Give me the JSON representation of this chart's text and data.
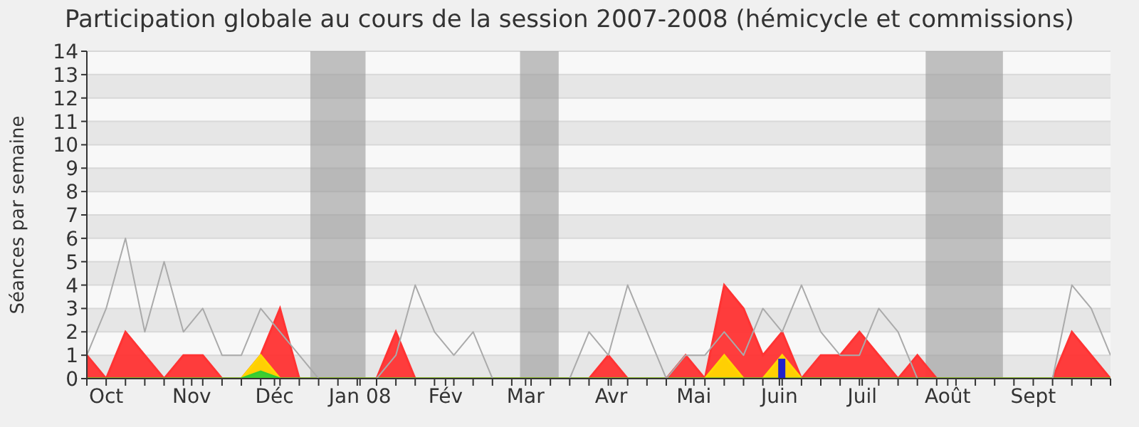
{
  "chart_data": {
    "type": "area",
    "title": "Participation globale au cours de la session 2007-2008 (hémicycle et commissions)",
    "ylabel": "Séances par semaine",
    "x": [
      "2007-09-24",
      "2007-10-01",
      "2007-10-08",
      "2007-10-15",
      "2007-10-22",
      "2007-10-29",
      "2007-11-05",
      "2007-11-12",
      "2007-11-19",
      "2007-11-26",
      "2007-12-03",
      "2007-12-10",
      "2007-12-17",
      "2007-12-24",
      "2007-12-31",
      "2008-01-07",
      "2008-01-14",
      "2008-01-21",
      "2008-01-28",
      "2008-02-04",
      "2008-02-11",
      "2008-02-18",
      "2008-02-25",
      "2008-03-03",
      "2008-03-10",
      "2008-03-17",
      "2008-03-24",
      "2008-03-31",
      "2008-04-07",
      "2008-04-14",
      "2008-04-21",
      "2008-04-28",
      "2008-05-05",
      "2008-05-12",
      "2008-05-19",
      "2008-05-26",
      "2008-06-02",
      "2008-06-09",
      "2008-06-16",
      "2008-06-23",
      "2008-06-30",
      "2008-07-07",
      "2008-07-14",
      "2008-07-21",
      "2008-07-28",
      "2008-08-04",
      "2008-08-11",
      "2008-08-18",
      "2008-08-25",
      "2008-09-01",
      "2008-09-08",
      "2008-09-15",
      "2008-09-22",
      "2008-09-29"
    ],
    "series": [
      {
        "color": "#ff3333",
        "values": [
          1,
          0,
          2,
          1,
          0,
          1,
          1,
          0,
          0,
          1,
          3,
          0,
          0,
          0,
          0,
          0,
          2,
          0,
          0,
          0,
          0,
          0,
          0,
          0,
          0,
          0,
          0,
          1,
          0,
          0,
          0,
          1,
          0,
          4,
          3,
          1,
          2,
          0,
          1,
          1,
          2,
          1,
          0,
          1,
          0,
          0,
          0,
          0,
          0,
          0,
          0,
          2,
          1,
          0
        ]
      },
      {
        "color": "#ffd700",
        "values": [
          0,
          0,
          0,
          0,
          0,
          0,
          0,
          0,
          0,
          1,
          0,
          0,
          0,
          0,
          0,
          0,
          0,
          0,
          0,
          0,
          0,
          0,
          0,
          0,
          0,
          0,
          0,
          0,
          0,
          0,
          0,
          0,
          0,
          1,
          0,
          0,
          1,
          0,
          0,
          0,
          0,
          0,
          0,
          0,
          0,
          0,
          0,
          0,
          0,
          0,
          0,
          0,
          0,
          0
        ]
      },
      {
        "color": "#33cc33",
        "values": [
          0,
          0,
          0,
          0,
          0,
          0,
          0,
          0,
          0,
          0.3,
          0,
          0,
          0,
          0,
          0,
          0,
          0,
          0,
          0,
          0,
          0,
          0,
          0,
          0,
          0,
          0,
          0,
          0,
          0,
          0,
          0,
          0,
          0,
          0,
          0,
          0,
          0,
          0,
          0,
          0,
          0,
          0,
          0,
          0,
          0,
          0,
          0,
          0,
          0,
          0,
          0,
          0,
          0,
          0
        ]
      },
      {
        "type": "line",
        "color": "#aaaaaa",
        "values": [
          1,
          3,
          6,
          2,
          5,
          2,
          3,
          1,
          1,
          3,
          2,
          1,
          0,
          0,
          0,
          0,
          1,
          4,
          2,
          1,
          2,
          0,
          0,
          0,
          0,
          0,
          2,
          1,
          4,
          2,
          0,
          1,
          1,
          2,
          1,
          3,
          2,
          4,
          2,
          1,
          1,
          3,
          2,
          0,
          0,
          0,
          0,
          0,
          0,
          0,
          0,
          4,
          3,
          1
        ]
      },
      {
        "type": "bar",
        "color": "#2222cc",
        "values": [
          null,
          null,
          null,
          null,
          null,
          null,
          null,
          null,
          null,
          null,
          null,
          null,
          null,
          null,
          null,
          null,
          null,
          null,
          null,
          null,
          null,
          null,
          null,
          null,
          null,
          null,
          null,
          null,
          null,
          null,
          null,
          null,
          null,
          null,
          null,
          null,
          0.85,
          null,
          null,
          null,
          null,
          null,
          null,
          null,
          null,
          null,
          null,
          null,
          null,
          null,
          null,
          null,
          null,
          null
        ]
      }
    ],
    "xlim": [
      "2007-09-24",
      "2008-09-29"
    ],
    "xticks": [
      {
        "value": "2007-09-24",
        "label": null
      },
      {
        "value": "2007-10-01",
        "label": "Oct"
      },
      {
        "value": "2007-10-08",
        "label": null
      },
      {
        "value": "2007-10-15",
        "label": null
      },
      {
        "value": "2007-10-22",
        "label": null
      },
      {
        "value": "2007-10-29",
        "label": null
      },
      {
        "value": "2007-11-01",
        "label": "Nov"
      },
      {
        "value": "2007-11-05",
        "label": null
      },
      {
        "value": "2007-11-12",
        "label": null
      },
      {
        "value": "2007-11-19",
        "label": null
      },
      {
        "value": "2007-11-26",
        "label": null
      },
      {
        "value": "2007-12-01",
        "label": "Déc"
      },
      {
        "value": "2007-12-03",
        "label": null
      },
      {
        "value": "2007-12-10",
        "label": null
      },
      {
        "value": "2007-12-17",
        "label": null
      },
      {
        "value": "2007-12-24",
        "label": null
      },
      {
        "value": "2007-12-31",
        "label": null
      },
      {
        "value": "2008-01-01",
        "label": "Jan 08"
      },
      {
        "value": "2008-01-07",
        "label": null
      },
      {
        "value": "2008-01-14",
        "label": null
      },
      {
        "value": "2008-01-21",
        "label": null
      },
      {
        "value": "2008-01-28",
        "label": null
      },
      {
        "value": "2008-02-01",
        "label": "Fév"
      },
      {
        "value": "2008-02-04",
        "label": null
      },
      {
        "value": "2008-02-11",
        "label": null
      },
      {
        "value": "2008-02-18",
        "label": null
      },
      {
        "value": "2008-02-25",
        "label": null
      },
      {
        "value": "2008-03-01",
        "label": "Mar"
      },
      {
        "value": "2008-03-03",
        "label": null
      },
      {
        "value": "2008-03-10",
        "label": null
      },
      {
        "value": "2008-03-17",
        "label": null
      },
      {
        "value": "2008-03-24",
        "label": null
      },
      {
        "value": "2008-03-31",
        "label": null
      },
      {
        "value": "2008-04-01",
        "label": "Avr"
      },
      {
        "value": "2008-04-07",
        "label": null
      },
      {
        "value": "2008-04-14",
        "label": null
      },
      {
        "value": "2008-04-21",
        "label": null
      },
      {
        "value": "2008-04-28",
        "label": null
      },
      {
        "value": "2008-05-01",
        "label": "Mai"
      },
      {
        "value": "2008-05-05",
        "label": null
      },
      {
        "value": "2008-05-12",
        "label": null
      },
      {
        "value": "2008-05-19",
        "label": null
      },
      {
        "value": "2008-05-26",
        "label": null
      },
      {
        "value": "2008-06-01",
        "label": "Juin"
      },
      {
        "value": "2008-06-02",
        "label": null
      },
      {
        "value": "2008-06-09",
        "label": null
      },
      {
        "value": "2008-06-16",
        "label": null
      },
      {
        "value": "2008-06-23",
        "label": null
      },
      {
        "value": "2008-06-30",
        "label": null
      },
      {
        "value": "2008-07-01",
        "label": "Juil"
      },
      {
        "value": "2008-07-07",
        "label": null
      },
      {
        "value": "2008-07-14",
        "label": null
      },
      {
        "value": "2008-07-21",
        "label": null
      },
      {
        "value": "2008-07-28",
        "label": null
      },
      {
        "value": "2008-08-01",
        "label": "Août"
      },
      {
        "value": "2008-08-04",
        "label": null
      },
      {
        "value": "2008-08-11",
        "label": null
      },
      {
        "value": "2008-08-18",
        "label": null
      },
      {
        "value": "2008-08-25",
        "label": null
      },
      {
        "value": "2008-09-01",
        "label": "Sept"
      },
      {
        "value": "2008-09-08",
        "label": null
      },
      {
        "value": "2008-09-15",
        "label": null
      },
      {
        "value": "2008-09-22",
        "label": null
      },
      {
        "value": "2008-09-29",
        "label": null
      }
    ],
    "ylim": [
      0,
      14
    ],
    "yticks": [
      0,
      1,
      2,
      3,
      4,
      5,
      6,
      7,
      8,
      9,
      10,
      11,
      12,
      13,
      14
    ],
    "grid": "y",
    "bands": [
      {
        "axis": "x",
        "from": "2007-12-14",
        "to": "2008-01-03",
        "color": "#999999"
      },
      {
        "axis": "x",
        "from": "2008-02-28",
        "to": "2008-03-13",
        "color": "#999999"
      },
      {
        "axis": "x",
        "from": "2008-07-24",
        "to": "2008-08-21",
        "color": "#999999"
      }
    ]
  }
}
